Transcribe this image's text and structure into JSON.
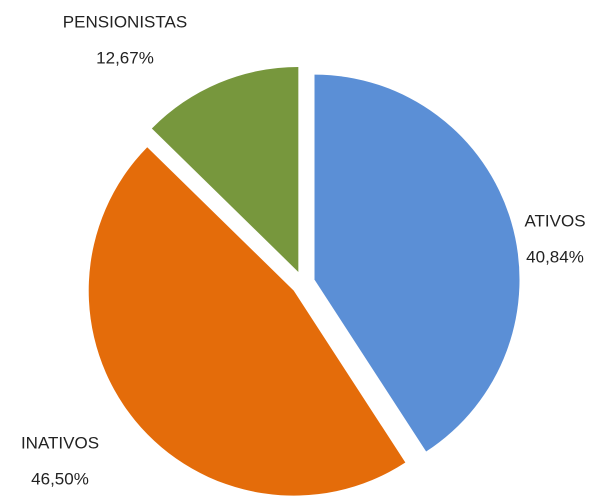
{
  "chart_data": {
    "type": "pie",
    "categories": [
      "ATIVOS",
      "INATIVOS",
      "PENSIONISTAS"
    ],
    "values": [
      40.84,
      46.5,
      12.67
    ],
    "value_labels": [
      "40,84%",
      "46,50%",
      "12,67%"
    ],
    "colors": [
      "#5b8fd6",
      "#e46c0a",
      "#77973d"
    ]
  }
}
